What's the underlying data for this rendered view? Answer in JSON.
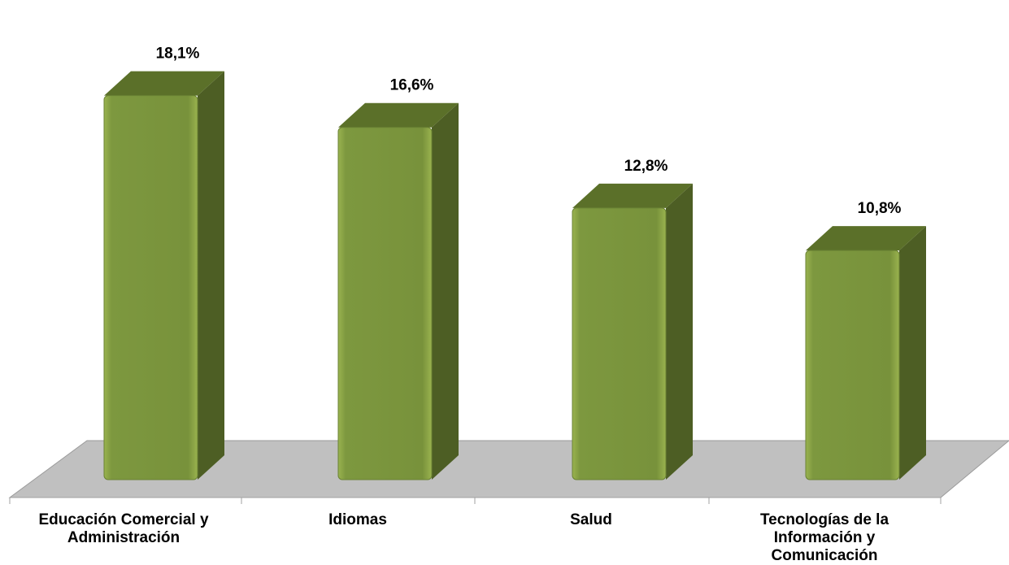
{
  "chart_data": {
    "type": "bar",
    "categories": [
      [
        "Educación Comercial y",
        "Administración"
      ],
      [
        "Idiomas"
      ],
      [
        "Salud"
      ],
      [
        "Tecnologías de la",
        "Información y",
        "Comunicación"
      ]
    ],
    "values": [
      18.1,
      16.6,
      12.8,
      10.8
    ],
    "data_labels": [
      "18,1%",
      "16,6%",
      "12,8%",
      "10,8%"
    ],
    "title": "",
    "xlabel": "",
    "ylabel": "",
    "ylim": [
      0,
      20
    ],
    "grid": false,
    "legend": "none",
    "style": "3d-column",
    "colors": {
      "bar_front": "#7a953d",
      "bar_side": "#4d5e24",
      "bar_top": "#5b7029",
      "floor": "#c0c0c0",
      "axis": "#a0a0a0"
    }
  }
}
